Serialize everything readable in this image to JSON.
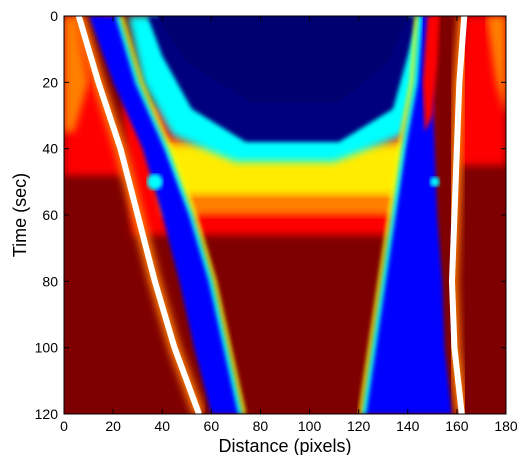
{
  "chart_data": {
    "type": "heatmap",
    "title": "",
    "xlabel": "Distance (pixels)",
    "ylabel": "Time (sec)",
    "xlim": [
      0,
      180
    ],
    "ylim": [
      0,
      120
    ],
    "y_direction": "down",
    "xticks": [
      0,
      20,
      40,
      60,
      80,
      100,
      120,
      140,
      160,
      180
    ],
    "yticks": [
      0,
      20,
      40,
      60,
      80,
      100,
      120
    ],
    "grid": false,
    "legend": "none",
    "colormap": "jet",
    "colors": [
      "#00007f",
      "#0000ff",
      "#00ffff",
      "#ffff00",
      "#ff7f00",
      "#ff0000",
      "#7f0000",
      "#ffffff"
    ],
    "boundaries": {
      "left_white": [
        [
          6,
          0
        ],
        [
          14,
          20
        ],
        [
          23,
          40
        ],
        [
          30,
          60
        ],
        [
          37,
          80
        ],
        [
          45,
          100
        ],
        [
          55,
          120
        ]
      ],
      "left_blue_inner": [
        [
          10,
          0
        ],
        [
          20,
          20
        ],
        [
          32,
          40
        ],
        [
          40,
          60
        ],
        [
          47,
          80
        ],
        [
          53,
          100
        ],
        [
          60,
          120
        ]
      ],
      "left_center_line": [
        [
          22,
          0
        ],
        [
          30,
          20
        ],
        [
          42,
          40
        ],
        [
          52,
          60
        ],
        [
          60,
          80
        ],
        [
          66,
          100
        ],
        [
          72,
          120
        ]
      ],
      "right_center_line": [
        [
          145,
          0
        ],
        [
          143,
          20
        ],
        [
          138,
          40
        ],
        [
          134,
          60
        ],
        [
          130,
          80
        ],
        [
          126,
          100
        ],
        [
          122,
          120
        ]
      ],
      "right_blue_outer": [
        [
          150,
          0
        ],
        [
          150,
          20
        ],
        [
          151,
          40
        ],
        [
          152,
          60
        ],
        [
          154,
          80
        ],
        [
          155,
          100
        ],
        [
          158,
          120
        ]
      ],
      "right_white": [
        [
          163,
          0
        ],
        [
          161,
          20
        ],
        [
          160,
          40
        ],
        [
          159,
          60
        ],
        [
          158,
          80
        ],
        [
          159,
          100
        ],
        [
          162,
          120
        ]
      ],
      "transition_band_time": [
        35,
        60
      ]
    }
  }
}
